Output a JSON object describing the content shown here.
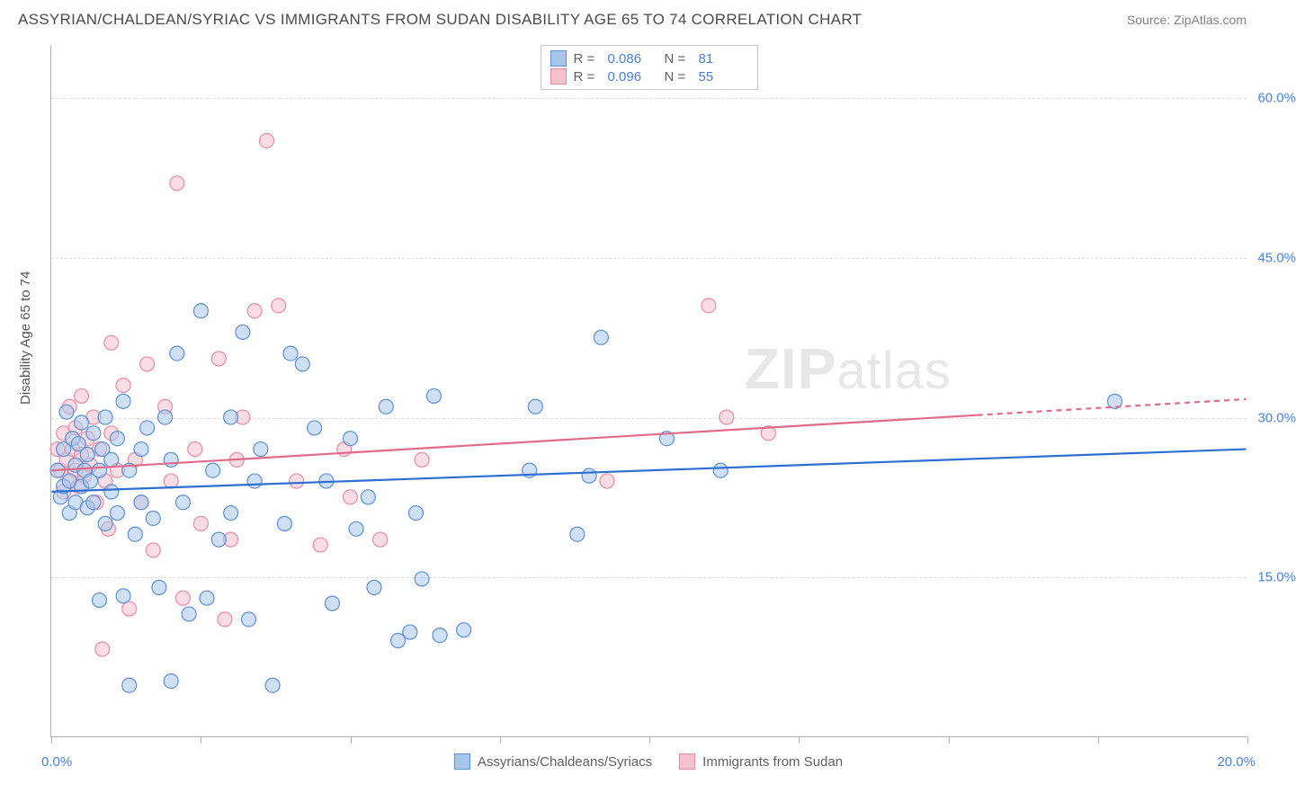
{
  "header": {
    "title": "ASSYRIAN/CHALDEAN/SYRIAC VS IMMIGRANTS FROM SUDAN DISABILITY AGE 65 TO 74 CORRELATION CHART",
    "source": "Source: ZipAtlas.com"
  },
  "watermark_zip": "ZIP",
  "watermark_atlas": "atlas",
  "chart": {
    "type": "scatter",
    "ylabel": "Disability Age 65 to 74",
    "xlim": [
      0,
      20
    ],
    "ylim": [
      0,
      65
    ],
    "ytick_values": [
      15,
      30,
      45,
      60
    ],
    "ytick_labels": [
      "15.0%",
      "30.0%",
      "45.0%",
      "60.0%"
    ],
    "xtick_values": [
      0,
      2.5,
      5,
      7.5,
      10,
      12.5,
      15,
      17.5,
      20
    ],
    "x_start_label": "0.0%",
    "x_end_label": "20.0%",
    "background_color": "#ffffff",
    "grid_color": "#dcdcdc",
    "marker_radius": 8,
    "marker_opacity": 0.55,
    "marker_stroke_width": 1.2,
    "trend_line_width": 2.2,
    "series": [
      {
        "key": "assyrians",
        "label": "Assyrians/Chaldeans/Syriacs",
        "fill": "#a8c6ec",
        "stroke": "#5b8fd6",
        "line_color": "#2b6fd0",
        "R": "0.086",
        "N": "81",
        "trend": {
          "x1": 0,
          "y1": 23,
          "x2": 20,
          "y2": 27,
          "dash_from_x": 20
        },
        "points": [
          [
            0.1,
            25
          ],
          [
            0.15,
            22.5
          ],
          [
            0.2,
            27
          ],
          [
            0.2,
            23.5
          ],
          [
            0.25,
            30.5
          ],
          [
            0.3,
            24
          ],
          [
            0.3,
            21
          ],
          [
            0.35,
            28
          ],
          [
            0.4,
            25.5
          ],
          [
            0.4,
            22
          ],
          [
            0.45,
            27.5
          ],
          [
            0.5,
            23.5
          ],
          [
            0.5,
            29.5
          ],
          [
            0.55,
            25
          ],
          [
            0.6,
            21.5
          ],
          [
            0.6,
            26.5
          ],
          [
            0.65,
            24
          ],
          [
            0.7,
            28.5
          ],
          [
            0.7,
            22
          ],
          [
            0.8,
            25
          ],
          [
            0.8,
            12.8
          ],
          [
            0.85,
            27
          ],
          [
            0.9,
            20
          ],
          [
            0.9,
            30
          ],
          [
            1.0,
            23
          ],
          [
            1.0,
            26
          ],
          [
            1.1,
            28
          ],
          [
            1.1,
            21
          ],
          [
            1.2,
            13.2
          ],
          [
            1.2,
            31.5
          ],
          [
            1.3,
            4.8
          ],
          [
            1.3,
            25
          ],
          [
            1.4,
            19
          ],
          [
            1.5,
            27
          ],
          [
            1.5,
            22
          ],
          [
            1.6,
            29
          ],
          [
            1.7,
            20.5
          ],
          [
            1.8,
            14
          ],
          [
            1.9,
            30
          ],
          [
            2.0,
            26
          ],
          [
            2.0,
            5.2
          ],
          [
            2.1,
            36
          ],
          [
            2.2,
            22
          ],
          [
            2.3,
            11.5
          ],
          [
            2.5,
            40
          ],
          [
            2.6,
            13
          ],
          [
            2.7,
            25
          ],
          [
            2.8,
            18.5
          ],
          [
            3.0,
            21
          ],
          [
            3.0,
            30
          ],
          [
            3.2,
            38
          ],
          [
            3.3,
            11
          ],
          [
            3.4,
            24
          ],
          [
            3.5,
            27
          ],
          [
            3.7,
            4.8
          ],
          [
            3.9,
            20
          ],
          [
            4.0,
            36
          ],
          [
            4.2,
            35
          ],
          [
            4.4,
            29
          ],
          [
            4.6,
            24
          ],
          [
            4.7,
            12.5
          ],
          [
            5.0,
            28
          ],
          [
            5.1,
            19.5
          ],
          [
            5.3,
            22.5
          ],
          [
            5.4,
            14
          ],
          [
            5.6,
            31
          ],
          [
            5.8,
            9
          ],
          [
            6.0,
            9.8
          ],
          [
            6.1,
            21
          ],
          [
            6.2,
            14.8
          ],
          [
            6.4,
            32
          ],
          [
            6.5,
            9.5
          ],
          [
            6.9,
            10
          ],
          [
            8.0,
            25
          ],
          [
            8.1,
            31
          ],
          [
            8.8,
            19
          ],
          [
            9.0,
            24.5
          ],
          [
            9.2,
            37.5
          ],
          [
            10.3,
            28
          ],
          [
            11.2,
            25
          ],
          [
            17.8,
            31.5
          ]
        ]
      },
      {
        "key": "sudan",
        "label": "Immigrants from Sudan",
        "fill": "#f5c1cd",
        "stroke": "#e88aa2",
        "line_color": "#e06a8a",
        "R": "0.096",
        "N": "55",
        "trend": {
          "x1": 0,
          "y1": 25,
          "x2": 15.5,
          "y2": 30.2,
          "dash_from_x": 15.5,
          "x_end": 20,
          "y_end": 31.7
        },
        "points": [
          [
            0.1,
            27
          ],
          [
            0.15,
            25
          ],
          [
            0.2,
            23
          ],
          [
            0.2,
            28.5
          ],
          [
            0.25,
            26
          ],
          [
            0.3,
            24
          ],
          [
            0.3,
            31
          ],
          [
            0.35,
            27
          ],
          [
            0.4,
            25
          ],
          [
            0.4,
            29
          ],
          [
            0.45,
            23.5
          ],
          [
            0.5,
            26.5
          ],
          [
            0.5,
            32
          ],
          [
            0.55,
            24.5
          ],
          [
            0.6,
            28
          ],
          [
            0.65,
            25.5
          ],
          [
            0.7,
            30
          ],
          [
            0.75,
            22
          ],
          [
            0.8,
            27
          ],
          [
            0.85,
            8.2
          ],
          [
            0.9,
            24
          ],
          [
            0.95,
            19.5
          ],
          [
            1.0,
            28.5
          ],
          [
            1.0,
            37
          ],
          [
            1.1,
            25
          ],
          [
            1.2,
            33
          ],
          [
            1.3,
            12
          ],
          [
            1.4,
            26
          ],
          [
            1.5,
            22
          ],
          [
            1.6,
            35
          ],
          [
            1.7,
            17.5
          ],
          [
            1.9,
            31
          ],
          [
            2.0,
            24
          ],
          [
            2.1,
            52
          ],
          [
            2.2,
            13
          ],
          [
            2.4,
            27
          ],
          [
            2.5,
            20
          ],
          [
            2.8,
            35.5
          ],
          [
            2.9,
            11
          ],
          [
            3.0,
            18.5
          ],
          [
            3.1,
            26
          ],
          [
            3.2,
            30
          ],
          [
            3.4,
            40
          ],
          [
            3.6,
            56
          ],
          [
            3.8,
            40.5
          ],
          [
            4.1,
            24
          ],
          [
            4.5,
            18
          ],
          [
            4.9,
            27
          ],
          [
            5.0,
            22.5
          ],
          [
            5.5,
            18.5
          ],
          [
            6.2,
            26
          ],
          [
            9.3,
            24
          ],
          [
            11.0,
            40.5
          ],
          [
            11.3,
            30
          ],
          [
            12.0,
            28.5
          ]
        ]
      }
    ]
  }
}
